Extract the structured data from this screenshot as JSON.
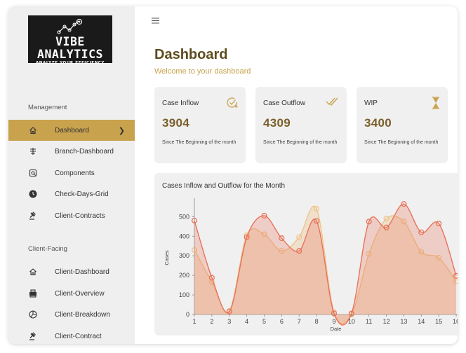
{
  "brand": {
    "title": "VIBE ANALYTICS",
    "tagline": "ANALYZE YOUR EFFICIENCY"
  },
  "sidebar": {
    "sections": [
      {
        "label": "Management",
        "items": [
          {
            "label": "Dashboard",
            "icon": "home-icon",
            "active": true
          },
          {
            "label": "Branch-Dashboard",
            "icon": "branch-icon"
          },
          {
            "label": "Components",
            "icon": "components-icon"
          },
          {
            "label": "Check-Days-Grid",
            "icon": "clock-icon"
          },
          {
            "label": "Client-Contracts",
            "icon": "gavel-icon"
          }
        ]
      },
      {
        "label": "Client-Facing",
        "items": [
          {
            "label": "Client-Dashboard",
            "icon": "home-icon"
          },
          {
            "label": "Client-Overview",
            "icon": "printer-icon"
          },
          {
            "label": "Client-Breakdown",
            "icon": "pie-icon"
          },
          {
            "label": "Client-Contract",
            "icon": "gavel-icon"
          }
        ]
      }
    ]
  },
  "header": {
    "title": "Dashboard",
    "subtitle": "Welcome to your dashboard"
  },
  "cards": [
    {
      "label": "Case Inflow",
      "value": "3904",
      "note": "Since The Beginning of the month",
      "icon": "check-plus-icon"
    },
    {
      "label": "Case Outflow",
      "value": "4309",
      "note": "Since The Beginning of the month",
      "icon": "double-check-icon"
    },
    {
      "label": "WIP",
      "value": "3400",
      "note": "Since The Beginning of the month",
      "icon": "hourglass-icon"
    }
  ],
  "colors": {
    "accent": "#c9a24e",
    "inflow": "#e8735a",
    "outflow": "#eec48a"
  },
  "chart_data": {
    "type": "area",
    "title": "Cases Inflow and Outflow for the Month",
    "xlabel": "Date",
    "ylabel": "Cases",
    "x": [
      1,
      2,
      3,
      4,
      5,
      6,
      7,
      8,
      9,
      10,
      11,
      12,
      13,
      14,
      15,
      16
    ],
    "xlim": [
      1,
      16.4
    ],
    "ylim": [
      0,
      580
    ],
    "yticks": [
      0,
      100,
      200,
      300,
      400,
      500
    ],
    "grid": false,
    "series": [
      {
        "values": [
          480,
          188,
          15,
          395,
          505,
          390,
          325,
          478,
          5,
          5,
          475,
          445,
          565,
          420,
          465,
          198
        ],
        "color": "#e8735a"
      },
      {
        "values": [
          330,
          165,
          18,
          405,
          410,
          325,
          395,
          540,
          12,
          0,
          310,
          490,
          475,
          320,
          290,
          170
        ],
        "color": "#eec48a"
      }
    ]
  }
}
